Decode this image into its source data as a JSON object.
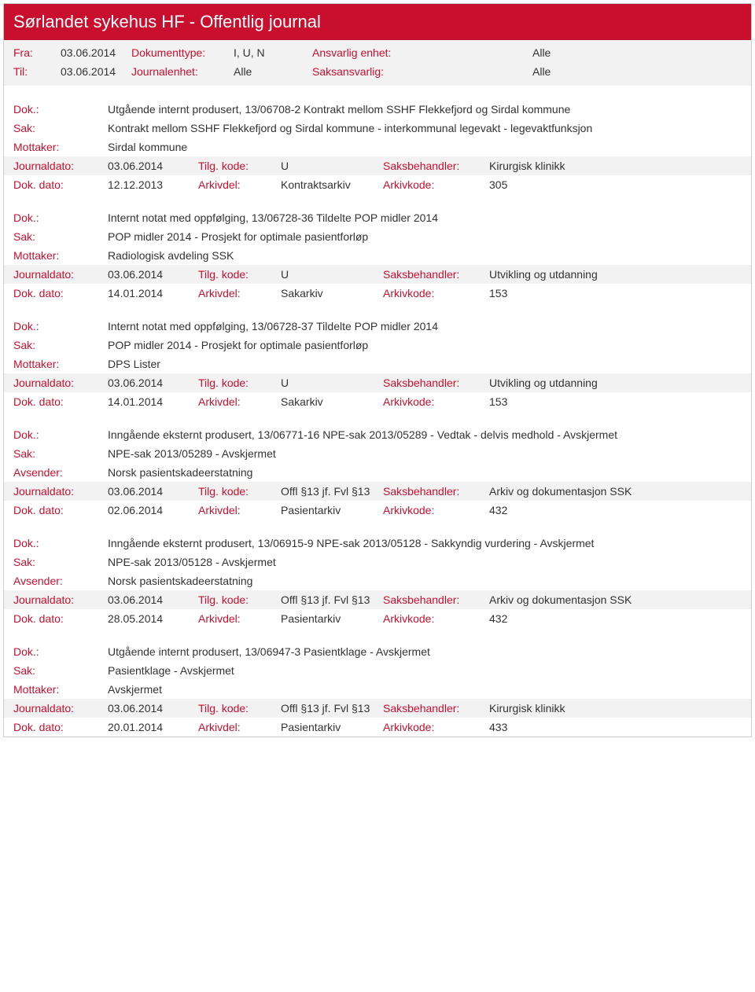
{
  "header": {
    "title": "Sørlandet sykehus HF - Offentlig journal",
    "fra_label": "Fra:",
    "fra_value": "03.06.2014",
    "dokumenttype_label": "Dokumenttype:",
    "dokumenttype_value": "I, U, N",
    "ansvarlig_label": "Ansvarlig enhet:",
    "ansvarlig_value": "Alle",
    "til_label": "Til:",
    "til_value": "03.06.2014",
    "journalenhet_label": "Journalenhet:",
    "journalenhet_value": "Alle",
    "saksansvarlig_label": "Saksansvarlig:",
    "saksansvarlig_value": "Alle"
  },
  "entries": [
    {
      "dok_label": "Dok.:",
      "dok": "Utgående internt produsert, 13/06708-2 Kontrakt mellom SSHF Flekkefjord og Sirdal kommune",
      "sak_label": "Sak:",
      "sak": "Kontrakt mellom SSHF Flekkefjord og Sirdal kommune - interkommunal legevakt - legevaktfunksjon",
      "party_label": "Mottaker:",
      "party": "Sirdal kommune",
      "journaldato_label": "Journaldato:",
      "journaldato": "03.06.2014",
      "tilgkode_label": "Tilg. kode:",
      "tilgkode": "U",
      "saksbeh_label": "Saksbehandler:",
      "saksbeh": "Kirurgisk klinikk",
      "dokdato_label": "Dok. dato:",
      "dokdato": "12.12.2013",
      "arkivdel_label": "Arkivdel:",
      "arkivdel": "Kontraktsarkiv",
      "arkivkode_label": "Arkivkode:",
      "arkivkode": "305"
    },
    {
      "dok_label": "Dok.:",
      "dok": "Internt notat med oppfølging, 13/06728-36 Tildelte POP midler 2014",
      "sak_label": "Sak:",
      "sak": "POP midler 2014 - Prosjekt for optimale pasientforløp",
      "party_label": "Mottaker:",
      "party": "Radiologisk avdeling SSK",
      "journaldato_label": "Journaldato:",
      "journaldato": "03.06.2014",
      "tilgkode_label": "Tilg. kode:",
      "tilgkode": "U",
      "saksbeh_label": "Saksbehandler:",
      "saksbeh": "Utvikling og utdanning",
      "dokdato_label": "Dok. dato:",
      "dokdato": "14.01.2014",
      "arkivdel_label": "Arkivdel:",
      "arkivdel": "Sakarkiv",
      "arkivkode_label": "Arkivkode:",
      "arkivkode": "153"
    },
    {
      "dok_label": "Dok.:",
      "dok": "Internt notat med oppfølging, 13/06728-37 Tildelte POP midler 2014",
      "sak_label": "Sak:",
      "sak": "POP midler 2014 - Prosjekt for optimale pasientforløp",
      "party_label": "Mottaker:",
      "party": "DPS Lister",
      "journaldato_label": "Journaldato:",
      "journaldato": "03.06.2014",
      "tilgkode_label": "Tilg. kode:",
      "tilgkode": "U",
      "saksbeh_label": "Saksbehandler:",
      "saksbeh": "Utvikling og utdanning",
      "dokdato_label": "Dok. dato:",
      "dokdato": "14.01.2014",
      "arkivdel_label": "Arkivdel:",
      "arkivdel": "Sakarkiv",
      "arkivkode_label": "Arkivkode:",
      "arkivkode": "153"
    },
    {
      "dok_label": "Dok.:",
      "dok": "Inngående eksternt produsert, 13/06771-16 NPE-sak 2013/05289 - Vedtak - delvis medhold - Avskjermet",
      "sak_label": "Sak:",
      "sak": "NPE-sak 2013/05289 - Avskjermet",
      "party_label": "Avsender:",
      "party": "Norsk pasientskadeerstatning",
      "journaldato_label": "Journaldato:",
      "journaldato": "03.06.2014",
      "tilgkode_label": "Tilg. kode:",
      "tilgkode": "Offl §13 jf. Fvl §13",
      "saksbeh_label": "Saksbehandler:",
      "saksbeh": "Arkiv og dokumentasjon SSK",
      "dokdato_label": "Dok. dato:",
      "dokdato": "02.06.2014",
      "arkivdel_label": "Arkivdel:",
      "arkivdel": "Pasientarkiv",
      "arkivkode_label": "Arkivkode:",
      "arkivkode": "432"
    },
    {
      "dok_label": "Dok.:",
      "dok": "Inngående eksternt produsert, 13/06915-9 NPE-sak 2013/05128 - Sakkyndig vurdering - Avskjermet",
      "sak_label": "Sak:",
      "sak": "NPE-sak 2013/05128 - Avskjermet",
      "party_label": "Avsender:",
      "party": "Norsk pasientskadeerstatning",
      "journaldato_label": "Journaldato:",
      "journaldato": "03.06.2014",
      "tilgkode_label": "Tilg. kode:",
      "tilgkode": "Offl §13 jf. Fvl §13",
      "saksbeh_label": "Saksbehandler:",
      "saksbeh": "Arkiv og dokumentasjon SSK",
      "dokdato_label": "Dok. dato:",
      "dokdato": "28.05.2014",
      "arkivdel_label": "Arkivdel:",
      "arkivdel": "Pasientarkiv",
      "arkivkode_label": "Arkivkode:",
      "arkivkode": "432"
    },
    {
      "dok_label": "Dok.:",
      "dok": "Utgående internt produsert, 13/06947-3 Pasientklage - Avskjermet",
      "sak_label": "Sak:",
      "sak": "Pasientklage - Avskjermet",
      "party_label": "Mottaker:",
      "party": "Avskjermet",
      "journaldato_label": "Journaldato:",
      "journaldato": "03.06.2014",
      "tilgkode_label": "Tilg. kode:",
      "tilgkode": "Offl §13 jf. Fvl §13",
      "saksbeh_label": "Saksbehandler:",
      "saksbeh": "Kirurgisk klinikk",
      "dokdato_label": "Dok. dato:",
      "dokdato": "20.01.2014",
      "arkivdel_label": "Arkivdel:",
      "arkivdel": "Pasientarkiv",
      "arkivkode_label": "Arkivkode:",
      "arkivkode": "433"
    }
  ]
}
